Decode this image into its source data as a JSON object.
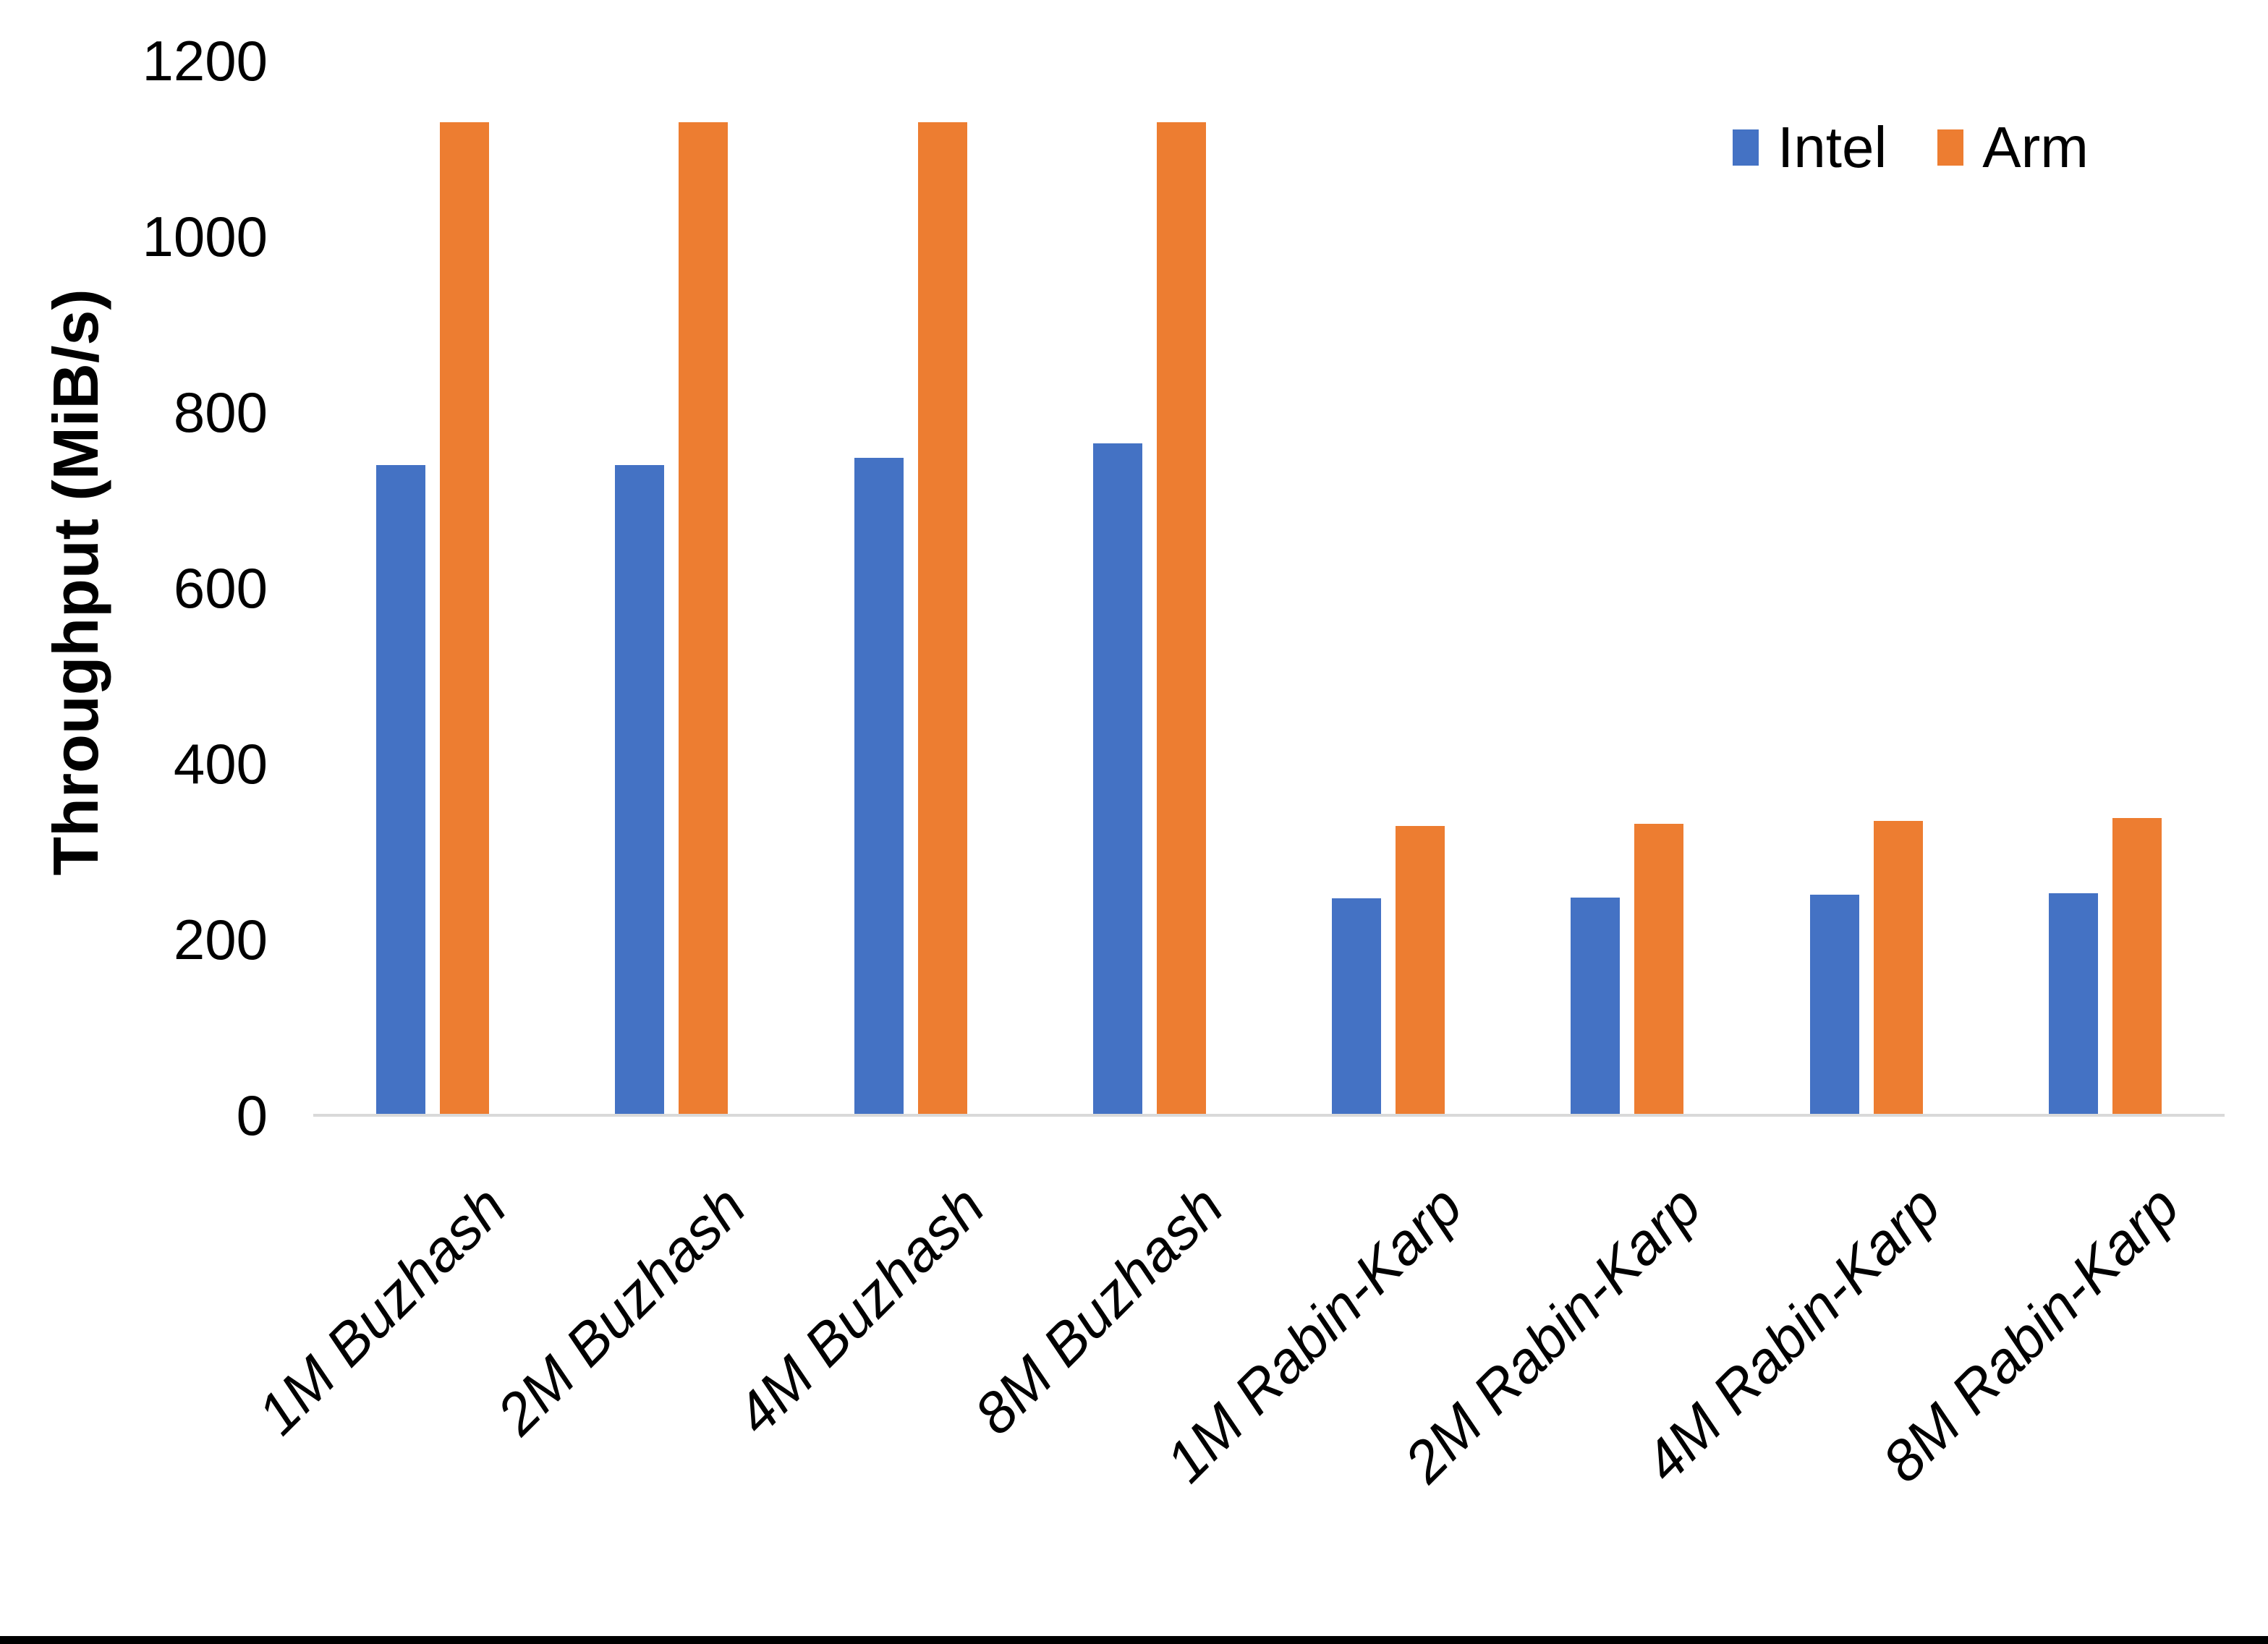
{
  "chart_data": {
    "type": "bar",
    "title": "",
    "xlabel": "",
    "ylabel": "Throughput (MiB/s)",
    "categories": [
      "1M Buzhash",
      "2M Buzhash",
      "4M Buzhash",
      "8M Buzhash",
      "1M Rabin-Karp",
      "2M Rabin-Karp",
      "4M Rabin-Karp",
      "8M Rabin-Karp"
    ],
    "series": [
      {
        "name": "Intel",
        "color": "#4472C4",
        "values": [
          740,
          740,
          748,
          765,
          247,
          248,
          251,
          253
        ]
      },
      {
        "name": "Arm",
        "color": "#ED7D31",
        "values": [
          1130,
          1130,
          1130,
          1130,
          329,
          332,
          335,
          338
        ]
      }
    ],
    "ylim": [
      0,
      1200
    ],
    "yticks": [
      0,
      200,
      400,
      600,
      800,
      1000,
      1200
    ],
    "grid": false,
    "legend_position": "top-right",
    "axis_line_color": "#D9D9D9",
    "text_color": "#000000",
    "category_label_rotation": -45
  }
}
